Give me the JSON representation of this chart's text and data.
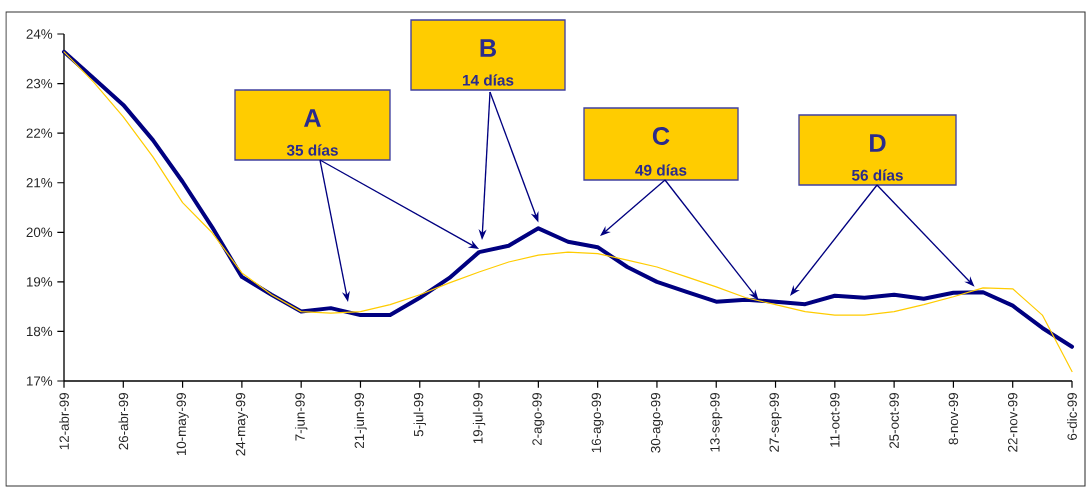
{
  "chart_data": {
    "type": "line",
    "x": [
      "1999-04-12",
      "1999-04-19",
      "1999-04-26",
      "1999-05-03",
      "1999-05-10",
      "1999-05-17",
      "1999-05-24",
      "1999-05-31",
      "1999-06-07",
      "1999-06-14",
      "1999-06-21",
      "1999-06-28",
      "1999-07-05",
      "1999-07-12",
      "1999-07-19",
      "1999-07-26",
      "1999-08-02",
      "1999-08-09",
      "1999-08-16",
      "1999-08-23",
      "1999-08-30",
      "1999-09-06",
      "1999-09-13",
      "1999-09-20",
      "1999-09-27",
      "1999-10-04",
      "1999-10-11",
      "1999-10-18",
      "1999-10-25",
      "1999-11-01",
      "1999-11-08",
      "1999-11-15",
      "1999-11-22",
      "1999-11-29",
      "1999-12-06"
    ],
    "series": [
      {
        "color": "#000080",
        "values": [
          23.64,
          23.11,
          22.57,
          21.86,
          21.02,
          20.1,
          19.1,
          18.74,
          18.4,
          18.47,
          18.33,
          18.33,
          18.68,
          19.08,
          19.6,
          19.73,
          20.08,
          19.81,
          19.7,
          19.3,
          19.0,
          18.8,
          18.6,
          18.64,
          18.6,
          18.55,
          18.72,
          18.68,
          18.74,
          18.66,
          18.78,
          18.79,
          18.52,
          18.07,
          17.69
        ]
      },
      {
        "color": "#ffcc00",
        "values": [
          23.64,
          23.03,
          22.33,
          21.52,
          20.6,
          19.99,
          19.18,
          18.74,
          18.4,
          18.37,
          18.4,
          18.54,
          18.74,
          18.98,
          19.2,
          19.4,
          19.54,
          19.6,
          19.57,
          19.44,
          19.3,
          19.1,
          18.9,
          18.68,
          18.54,
          18.4,
          18.33,
          18.33,
          18.4,
          18.54,
          18.7,
          18.88,
          18.86,
          18.33,
          17.19
        ]
      }
    ],
    "xlim": [
      "1999-04-12",
      "1999-12-06"
    ],
    "xticks": [
      {
        "value": "1999-04-12",
        "label": "12-abr-99"
      },
      {
        "value": "1999-04-26",
        "label": "26-abr-99"
      },
      {
        "value": "1999-05-10",
        "label": "10-may-99"
      },
      {
        "value": "1999-05-24",
        "label": "24-may-99"
      },
      {
        "value": "1999-06-07",
        "label": "7-jun-99"
      },
      {
        "value": "1999-06-21",
        "label": "21-jun-99"
      },
      {
        "value": "1999-07-05",
        "label": "5-jul-99"
      },
      {
        "value": "1999-07-19",
        "label": "19-jul-99"
      },
      {
        "value": "1999-08-02",
        "label": "2-ago-99"
      },
      {
        "value": "1999-08-16",
        "label": "16-ago-99"
      },
      {
        "value": "1999-08-30",
        "label": "30-ago-99"
      },
      {
        "value": "1999-09-13",
        "label": "13-sep-99"
      },
      {
        "value": "1999-09-27",
        "label": "27-sep-99"
      },
      {
        "value": "1999-10-11",
        "label": "11-oct-99"
      },
      {
        "value": "1999-10-25",
        "label": "25-oct-99"
      },
      {
        "value": "1999-11-08",
        "label": "8-nov-99"
      },
      {
        "value": "1999-11-22",
        "label": "22-nov-99"
      },
      {
        "value": "1999-12-06",
        "label": "6-dic-99"
      }
    ],
    "ylim": [
      17,
      24
    ],
    "yticks": [
      {
        "value": 17,
        "label": "17%"
      },
      {
        "value": 18,
        "label": "18%"
      },
      {
        "value": 19,
        "label": "19%"
      },
      {
        "value": 20,
        "label": "20%"
      },
      {
        "value": 21,
        "label": "21%"
      },
      {
        "value": 22,
        "label": "22%"
      },
      {
        "value": 23,
        "label": "23%"
      },
      {
        "value": 24,
        "label": "24%"
      }
    ],
    "annotations": [
      "A",
      {
        "text": "35 días",
        "x": "1999-07-19",
        "y": 19.66
      },
      "B",
      {
        "text": "14 días",
        "x": "1999-08-02",
        "y": 20.2
      },
      "C",
      {
        "text": "49 días",
        "x": "1999-09-23",
        "y": 18.63
      },
      "D",
      {
        "text": "56 días",
        "x": "1999-11-13",
        "y": 18.9
      }
    ]
  }
}
